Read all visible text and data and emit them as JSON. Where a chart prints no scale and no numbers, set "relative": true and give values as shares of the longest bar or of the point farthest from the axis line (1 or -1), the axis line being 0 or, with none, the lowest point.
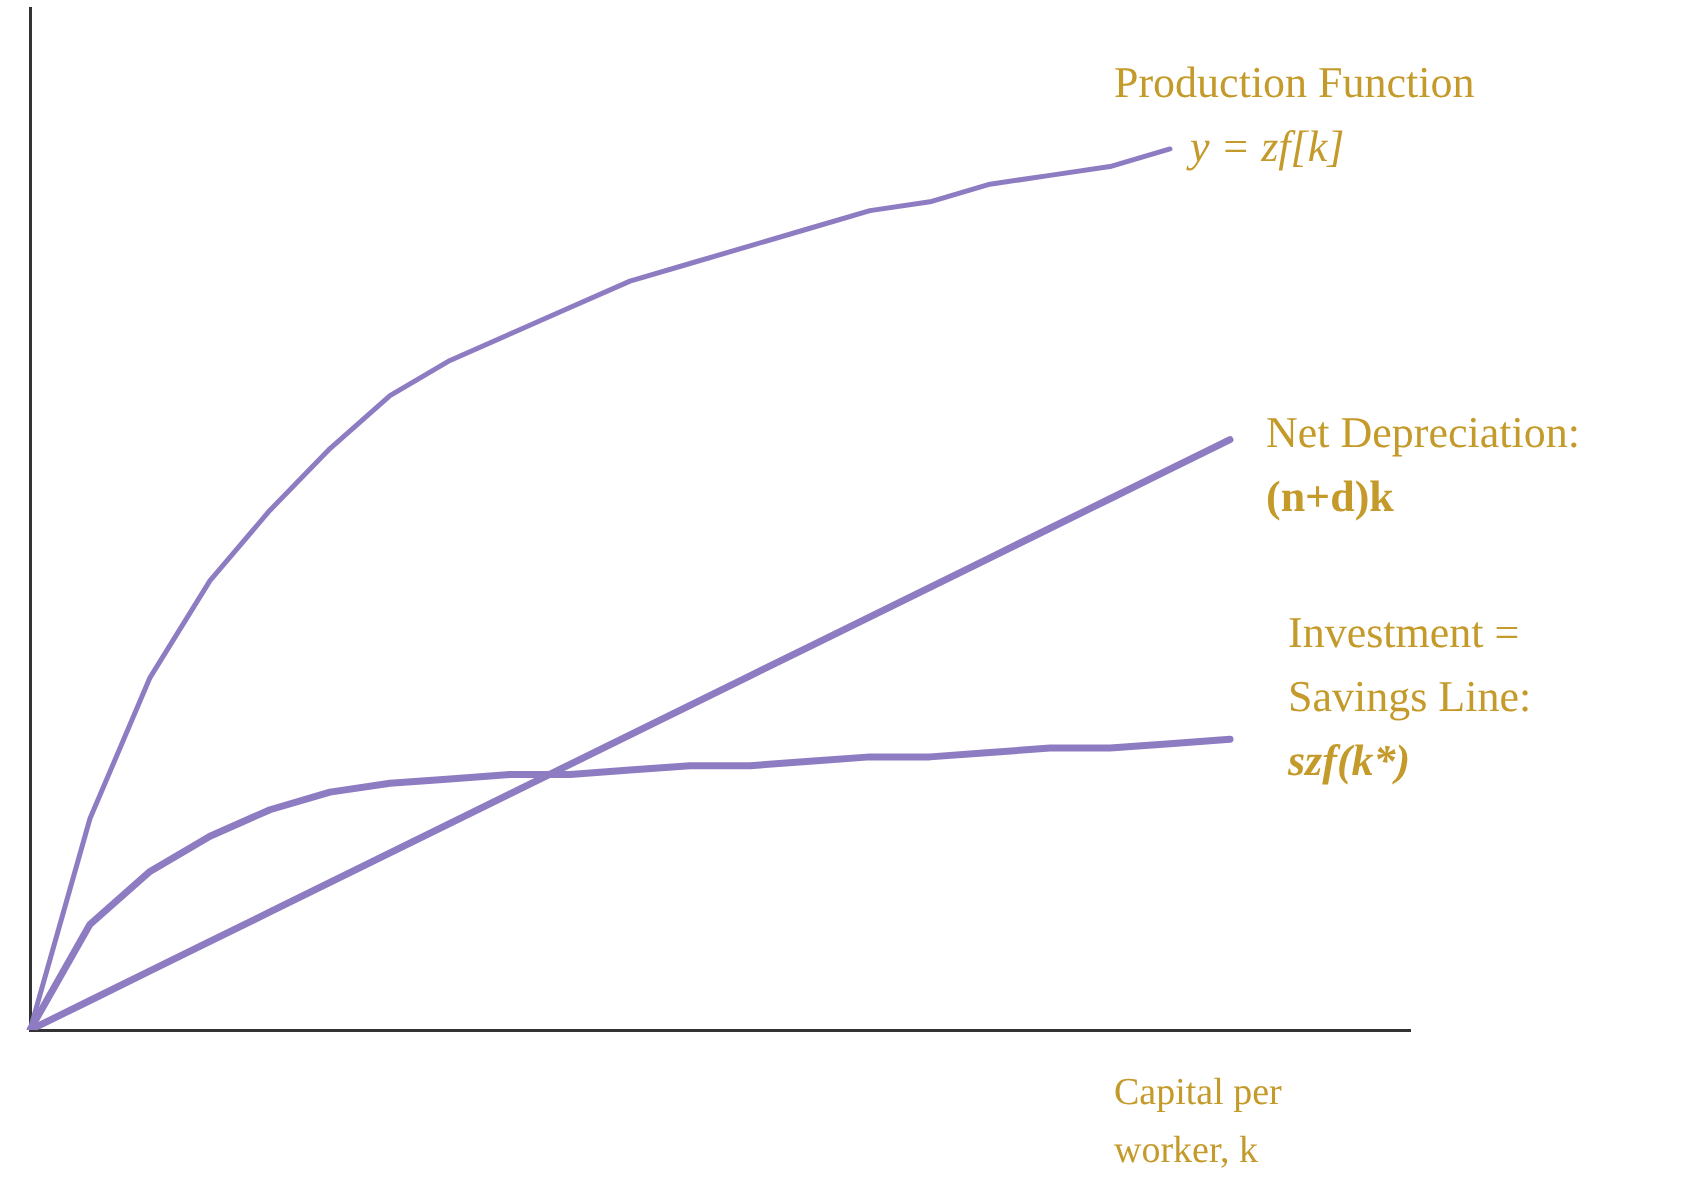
{
  "chart_data": {
    "type": "line",
    "relative": true,
    "legend": false,
    "grid": false,
    "marker": "none",
    "xlabel": "Capital per worker, k",
    "categories": [
      null,
      null,
      null,
      null,
      null,
      null,
      null,
      null,
      null,
      null,
      null,
      null,
      null,
      null,
      null,
      null,
      null,
      null,
      null,
      null,
      null,
      null,
      null,
      null
    ],
    "series": [
      {
        "name": "Production Function",
        "color": "#8e7cc3",
        "values": [
          0,
          0.24,
          0.4,
          0.51,
          0.59,
          0.66,
          0.72,
          0.76,
          0.79,
          0.82,
          0.85,
          0.87,
          0.89,
          0.91,
          0.93,
          0.94,
          0.96,
          0.97,
          0.98,
          1.0,
          null,
          null,
          null,
          null
        ]
      },
      {
        "name": "Net Depreciation:",
        "color": "#8e7cc3",
        "values": [
          0,
          0.0335,
          0.067,
          0.1005,
          0.134,
          0.1675,
          0.201,
          0.2345,
          0.268,
          0.3015,
          0.335,
          0.3685,
          0.402,
          0.4355,
          0.469,
          0.5025,
          0.536,
          0.5695,
          0.603,
          0.6365,
          0.67,
          null,
          null,
          null
        ]
      },
      {
        "name": "Investment = Savings Line:",
        "color": "#8e7cc3",
        "values": [
          0,
          0.12,
          0.18,
          0.22,
          0.25,
          0.27,
          0.28,
          0.285,
          0.29,
          0.29,
          0.295,
          0.3,
          0.3,
          0.305,
          0.31,
          0.31,
          0.315,
          0.32,
          0.32,
          0.325,
          0.33,
          null,
          null,
          null
        ]
      }
    ],
    "annotations": [
      "y = zf[k]",
      "(n+d)k",
      "szf(k*)"
    ]
  }
}
